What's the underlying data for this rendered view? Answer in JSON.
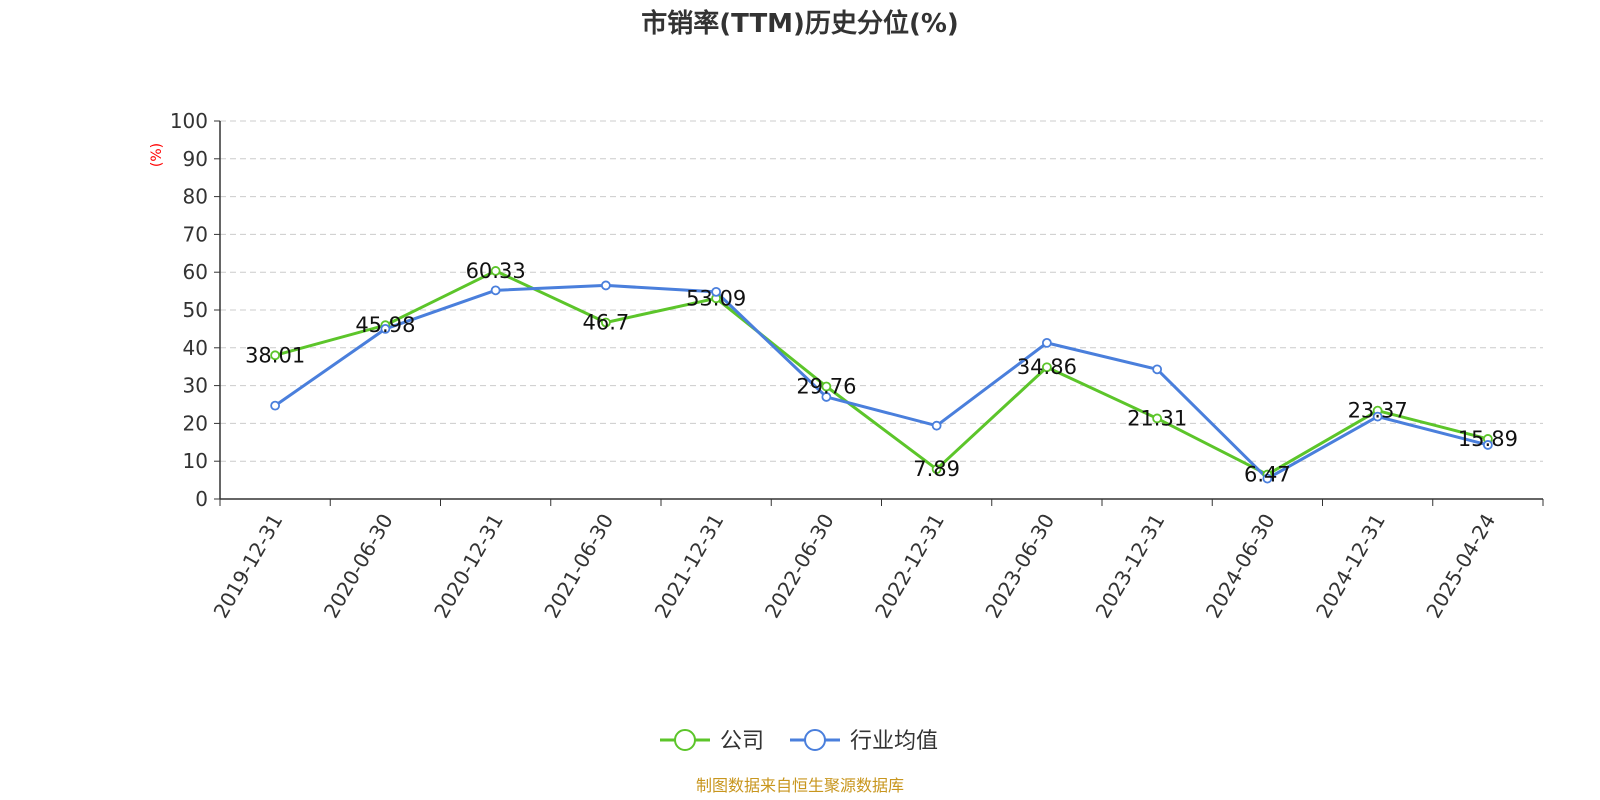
{
  "chart_data": {
    "type": "line",
    "title": "市销率(TTM)历史分位(%)",
    "y_unit_label": "(%)",
    "categories": [
      "2019-12-31",
      "2020-06-30",
      "2020-12-31",
      "2021-06-30",
      "2021-12-31",
      "2022-06-30",
      "2022-12-31",
      "2023-06-30",
      "2023-12-31",
      "2024-06-30",
      "2024-12-31",
      "2025-04-24"
    ],
    "ylim": [
      0,
      100
    ],
    "yticks": [
      0,
      10,
      20,
      30,
      40,
      50,
      60,
      70,
      80,
      90,
      100
    ],
    "grid": true,
    "legend_position": "bottom-center",
    "series": [
      {
        "name": "公司",
        "color": "#5cc52a",
        "values": [
          38.01,
          45.98,
          60.33,
          46.7,
          53.09,
          29.76,
          7.89,
          34.86,
          21.31,
          6.47,
          23.37,
          15.89
        ],
        "labeled": true
      },
      {
        "name": "行业均值",
        "color": "#4a7fdc",
        "values": [
          24.7,
          45.0,
          55.2,
          56.5,
          54.8,
          27.0,
          19.4,
          41.3,
          34.3,
          5.4,
          21.8,
          14.3
        ],
        "labeled": false
      }
    ]
  },
  "source": {
    "text": "制图数据来自恒生聚源数据库",
    "color": "#c8961e"
  },
  "colors": {
    "axis": "#333333",
    "grid": "#cccccc",
    "unit": "#ff0000"
  }
}
